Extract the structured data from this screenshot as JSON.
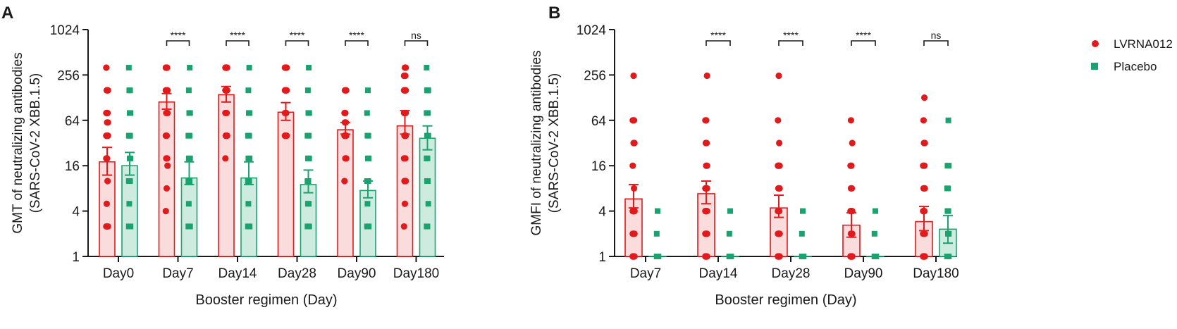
{
  "colors": {
    "vaccine": "#e31a1c",
    "vaccine_fill": "#fbdcdd",
    "placebo": "#1aa36f",
    "placebo_fill": "#cdebde",
    "axis": "#1a1a1a"
  },
  "legend": {
    "items": [
      {
        "label": "LVRNA012",
        "series": "vaccine"
      },
      {
        "label": "Placebo",
        "series": "placebo"
      }
    ]
  },
  "chart_data": [
    {
      "panel": "A",
      "type": "bar",
      "yscale": "log2",
      "ylim": [
        1,
        1024
      ],
      "yticks": [
        "1",
        "4",
        "16",
        "64",
        "256",
        "1024"
      ],
      "ylabel_line1": "GMT of neutralizing antibodies",
      "ylabel_line2": "(SARS-CoV-2 XBB.1.5)",
      "xlabel": "Booster regimen (Day)",
      "categories": [
        "Day0",
        "Day7",
        "Day14",
        "Day28",
        "Day90",
        "Day180"
      ],
      "significance": [
        "",
        "****",
        "****",
        "****",
        "****",
        "ns"
      ],
      "series": [
        {
          "name": "LVRNA012",
          "values": [
            18,
            112,
            140,
            82,
            48,
            54
          ],
          "error_low": [
            12,
            90,
            112,
            64,
            42,
            42
          ],
          "error_high": [
            28,
            145,
            180,
            110,
            60,
            86
          ],
          "points": [
            [
              2.5,
              2.5,
              2.5,
              5,
              10,
              20,
              20,
              40,
              40,
              40,
              40,
              60,
              60,
              80,
              80,
              80,
              80,
              160,
              160,
              160,
              320
            ],
            [
              4,
              8,
              16,
              20,
              20,
              40,
              40,
              80,
              80,
              160,
              160,
              160,
              160,
              320,
              320,
              320,
              320
            ],
            [
              20,
              40,
              40,
              40,
              80,
              80,
              160,
              160,
              160,
              160,
              160,
              320,
              320,
              320,
              320,
              320,
              320
            ],
            [
              40,
              40,
              40,
              40,
              80,
              80,
              80,
              160,
              160,
              160,
              160,
              160,
              320,
              320,
              320,
              320
            ],
            [
              10,
              20,
              20,
              40,
              40,
              40,
              40,
              40,
              60,
              60,
              80,
              80,
              160,
              160,
              160
            ],
            [
              2.5,
              5,
              10,
              10,
              20,
              20,
              40,
              40,
              40,
              40,
              80,
              80,
              80,
              80,
              160,
              160,
              160,
              160,
              250,
              250,
              250,
              320,
              320
            ]
          ]
        },
        {
          "name": "Placebo",
          "values": [
            16,
            11,
            11,
            9,
            7.5,
            37
          ],
          "error_low": [
            12,
            9,
            9,
            7,
            6,
            26
          ],
          "error_high": [
            24,
            18,
            18,
            14,
            10,
            54
          ],
          "points": [
            [
              2.5,
              2.5,
              2.5,
              5,
              10,
              10,
              20,
              20,
              40,
              40,
              40,
              80,
              80,
              160,
              160,
              320
            ],
            [
              2.5,
              2.5,
              2.5,
              5,
              10,
              10,
              10,
              20,
              20,
              40,
              40,
              80,
              80,
              160,
              320
            ],
            [
              2.5,
              2.5,
              2.5,
              5,
              10,
              10,
              10,
              20,
              20,
              40,
              40,
              80,
              80,
              160,
              320
            ],
            [
              2.5,
              2.5,
              2.5,
              5,
              5,
              10,
              10,
              20,
              20,
              40,
              40,
              80,
              80,
              160,
              320
            ],
            [
              2.5,
              2.5,
              2.5,
              5,
              10,
              10,
              20,
              20,
              40,
              40,
              80,
              160
            ],
            [
              2.5,
              2.5,
              5,
              10,
              10,
              20,
              20,
              40,
              40,
              80,
              80,
              160,
              160,
              160,
              160,
              320
            ]
          ]
        }
      ]
    },
    {
      "panel": "B",
      "type": "bar",
      "yscale": "log2",
      "ylim": [
        1,
        1024
      ],
      "yticks": [
        "1",
        "4",
        "16",
        "64",
        "256",
        "1024"
      ],
      "ylabel_line1": "GMFI  of neutralizing antibodies",
      "ylabel_line2": "(SARS-CoV-2 XBB.1.5)",
      "xlabel": "Booster regimen (Day)",
      "categories": [
        "Day7",
        "Day14",
        "Day28",
        "Day90",
        "Day180"
      ],
      "significance": [
        "",
        "****",
        "****",
        "****",
        "ns"
      ],
      "series": [
        {
          "name": "LVRNA012",
          "values": [
            5.8,
            6.8,
            4.4,
            2.6,
            2.9
          ],
          "error_low": [
            4.4,
            5,
            3.3,
            1.8,
            2.2
          ],
          "error_high": [
            9,
            10,
            6.5,
            3.8,
            4.6
          ],
          "points": [
            [
              1,
              1,
              1,
              1,
              1,
              1,
              1,
              2,
              2,
              2,
              2,
              4,
              4,
              4,
              4,
              4,
              4,
              4,
              4,
              8,
              16,
              32,
              32,
              64,
              64,
              64,
              250
            ],
            [
              1,
              1,
              1,
              1,
              1,
              1,
              1,
              2,
              2,
              2,
              2,
              4,
              4,
              4,
              4,
              4,
              4,
              8,
              8,
              8,
              8,
              16,
              16,
              32,
              32,
              64,
              64,
              250
            ],
            [
              1,
              1,
              1,
              1,
              1,
              1,
              1,
              1,
              2,
              2,
              2,
              2,
              2,
              4,
              4,
              4,
              4,
              8,
              8,
              8,
              16,
              16,
              16,
              16,
              32,
              64,
              250
            ],
            [
              1,
              1,
              1,
              1,
              1,
              1,
              1,
              1,
              1,
              1,
              1,
              2,
              2,
              2,
              2,
              4,
              4,
              4,
              8,
              8,
              16,
              16,
              32,
              64
            ],
            [
              1,
              1,
              1,
              1,
              1,
              1,
              1,
              1,
              1,
              2,
              2,
              2,
              2,
              4,
              4,
              4,
              8,
              8,
              8,
              16,
              16,
              32,
              32,
              64,
              128
            ]
          ]
        },
        {
          "name": "Placebo",
          "values": [
            1,
            1,
            1,
            1,
            2.3
          ],
          "error_low": [
            1,
            1,
            1,
            1,
            1.5
          ],
          "error_high": [
            1,
            1,
            1,
            1,
            3.5
          ],
          "points": [
            [
              1,
              1,
              1,
              1,
              1,
              1,
              1,
              1,
              1,
              1,
              2,
              4
            ],
            [
              1,
              1,
              1,
              1,
              1,
              1,
              1,
              1,
              1,
              1,
              2,
              4
            ],
            [
              1,
              1,
              1,
              1,
              1,
              1,
              1,
              1,
              1,
              1,
              2,
              4
            ],
            [
              1,
              1,
              1,
              1,
              1,
              1,
              1,
              1,
              1,
              1,
              2,
              4
            ],
            [
              1,
              1,
              1,
              1,
              1,
              1,
              2,
              2,
              4,
              4,
              8,
              8,
              16,
              16,
              64
            ]
          ]
        }
      ]
    }
  ]
}
